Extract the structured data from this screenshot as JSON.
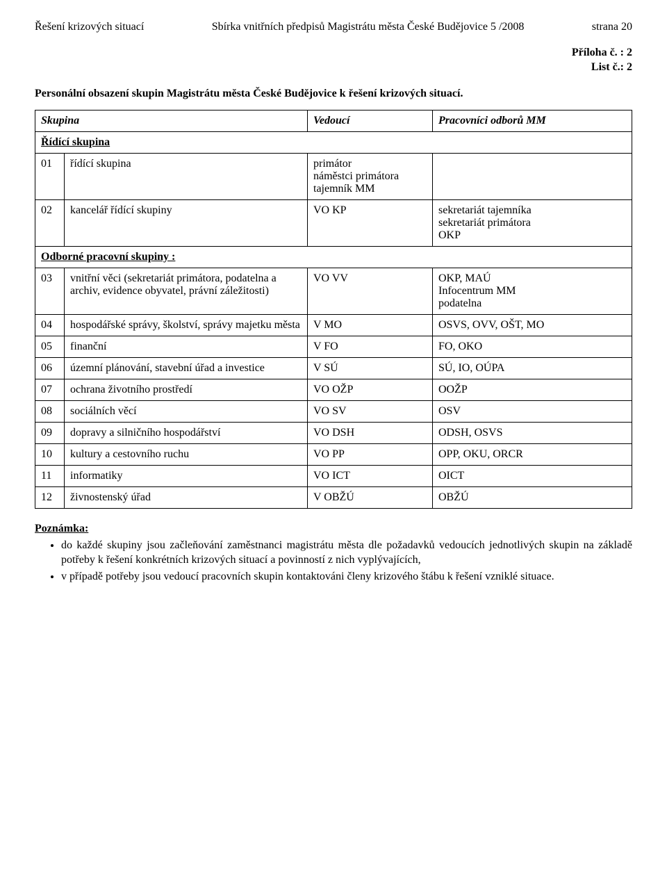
{
  "header": {
    "left": "Řešení krizových situací",
    "center": "Sbírka vnitřních předpisů Magistrátu města České Budějovice 5 /2008",
    "right": "strana 20"
  },
  "attachment": {
    "line1": "Příloha č. : 2",
    "line2": "List č.: 2"
  },
  "subtitle": "Personální obsazení skupin Magistrátu města České Budějovice k řešení krizových situací.",
  "table": {
    "headers": {
      "c1": "Skupina",
      "c2": "Vedoucí",
      "c3": "Pracovníci odborů MM"
    },
    "section1": "Řídící skupina",
    "section2": "Odborné pracovní skupiny :",
    "rows": [
      {
        "num": "01",
        "name": "řídící skupina",
        "lead": "primátor\nnáměstci primátora\ntajemník MM",
        "workers": ""
      },
      {
        "num": "02",
        "name": "kancelář řídící skupiny",
        "lead": "VO KP",
        "workers": "sekretariát tajemníka\nsekretariát primátora\nOKP"
      },
      {
        "num": "03",
        "name": "vnitřní věci (sekretariát primátora, podatelna a archiv, evidence obyvatel, právní záležitosti)",
        "lead": "VO VV",
        "workers": "OKP, MAÚ\nInfocentrum MM\npodatelna"
      },
      {
        "num": "04",
        "name": "hospodářské správy, školství, správy majetku města",
        "lead": "V MO",
        "workers": "OSVS, OVV, OŠT, MO"
      },
      {
        "num": "05",
        "name": "finanční",
        "lead": "V FO",
        "workers": "FO, OKO"
      },
      {
        "num": "06",
        "name": "územní plánování, stavební úřad a investice",
        "lead": "V SÚ",
        "workers": "SÚ, IO, OÚPA"
      },
      {
        "num": "07",
        "name": "ochrana životního prostředí",
        "lead": "VO OŽP",
        "workers": "OOŽP"
      },
      {
        "num": "08",
        "name": "sociálních věcí",
        "lead": "VO SV",
        "workers": "OSV"
      },
      {
        "num": "09",
        "name": "dopravy a silničního hospodářství",
        "lead": "VO DSH",
        "workers": "ODSH, OSVS"
      },
      {
        "num": "10",
        "name": "kultury a cestovního ruchu",
        "lead": "VO PP",
        "workers": "OPP, OKU, ORCR"
      },
      {
        "num": "11",
        "name": "informatiky",
        "lead": "VO ICT",
        "workers": "OICT"
      },
      {
        "num": "12",
        "name": "živnostenský úřad",
        "lead": "V OBŽÚ",
        "workers": "OBŽÚ"
      }
    ]
  },
  "note": {
    "head": "Poznámka:",
    "items": [
      "do každé skupiny jsou začleňování zaměstnanci magistrátu města dle požadavků vedoucích jednotlivých skupin na základě potřeby k řešení konkrétních krizových situací a povinností z nich vyplývajících,",
      "v případě potřeby jsou vedoucí pracovních skupin kontaktováni členy krizového štábu k řešení vzniklé situace."
    ]
  }
}
